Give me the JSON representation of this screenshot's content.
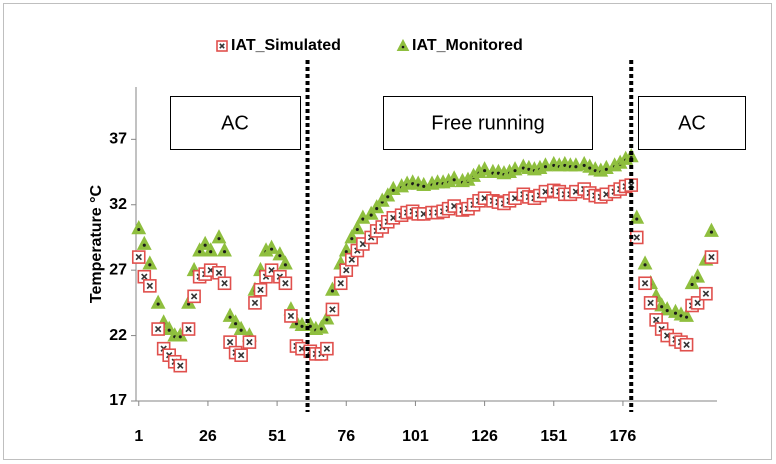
{
  "chart_data": {
    "type": "scatter",
    "y_label": "Temperature °C",
    "xlim": [
      0,
      210
    ],
    "ylim": [
      17,
      41
    ],
    "xticks": [
      1,
      26,
      51,
      76,
      101,
      126,
      151,
      176
    ],
    "yticks": [
      17,
      22,
      27,
      32,
      37
    ],
    "annotations": [
      "AC",
      "Free running",
      "AC"
    ],
    "dividers": [
      62,
      179
    ],
    "x": [
      1,
      3,
      5,
      8,
      10,
      12,
      14,
      16,
      19,
      21,
      23,
      25,
      27,
      30,
      32,
      34,
      36,
      38,
      41,
      43,
      45,
      47,
      49,
      52,
      54,
      56,
      58,
      60,
      63,
      65,
      67,
      69,
      71,
      74,
      76,
      78,
      80,
      82,
      85,
      87,
      89,
      91,
      93,
      96,
      98,
      100,
      102,
      104,
      107,
      109,
      111,
      113,
      115,
      118,
      120,
      122,
      124,
      126,
      129,
      131,
      133,
      135,
      137,
      140,
      142,
      144,
      146,
      148,
      151,
      153,
      155,
      157,
      159,
      162,
      164,
      166,
      168,
      170,
      173,
      175,
      177,
      179,
      181,
      184,
      186,
      188,
      190,
      192,
      195,
      197,
      199,
      201,
      203,
      206,
      208
    ],
    "series": [
      {
        "name": "IAT_Simulated",
        "color": "#e0504d",
        "marker": "square-x",
        "values": [
          28,
          26.5,
          25.8,
          22.5,
          21,
          20.5,
          20,
          19.7,
          22.5,
          25,
          26.5,
          26.7,
          27,
          26.8,
          26,
          21.5,
          20.7,
          20.5,
          21.5,
          24.5,
          25.5,
          26.5,
          27,
          26.5,
          26,
          23.5,
          21.2,
          21,
          20.8,
          20.6,
          20.6,
          21,
          24,
          26,
          27,
          27.8,
          28.5,
          29,
          29.5,
          30,
          30.3,
          30.7,
          31,
          31.2,
          31.4,
          31.5,
          31.3,
          31.3,
          31.4,
          31.4,
          31.5,
          31.7,
          31.9,
          31.6,
          31.7,
          32,
          32.3,
          32.5,
          32.3,
          32.2,
          32.1,
          32.3,
          32.5,
          32.8,
          32.6,
          32.5,
          32.7,
          33,
          33.1,
          33,
          32.8,
          32.8,
          33,
          33.2,
          32.9,
          32.7,
          32.6,
          32.8,
          33,
          33.2,
          33.4,
          33.5,
          29.5,
          26,
          24.5,
          23.2,
          22.5,
          22,
          21.7,
          21.5,
          21.3,
          24.3,
          24.5,
          25.2,
          28
        ]
      },
      {
        "name": "IAT_Monitored",
        "color": "#8fbf3f",
        "marker": "triangle",
        "values": [
          30.2,
          29,
          27.5,
          24.5,
          23,
          22.5,
          22,
          22,
          24.5,
          27,
          28.5,
          29,
          28.5,
          29.5,
          28.5,
          23.5,
          23,
          22.5,
          22,
          25.5,
          27,
          28.5,
          28.7,
          28.2,
          27.5,
          24,
          23,
          22.8,
          22.8,
          22.5,
          22.6,
          23.3,
          25.5,
          27.5,
          28.5,
          29.5,
          30.2,
          31,
          31.3,
          31.8,
          32.3,
          32.7,
          33.2,
          33.4,
          33.6,
          33.7,
          33.6,
          33.5,
          33.6,
          33.7,
          33.7,
          33.8,
          34,
          33.8,
          33.9,
          34.2,
          34.5,
          34.7,
          34.5,
          34.5,
          34.4,
          34.5,
          34.7,
          34.9,
          34.8,
          34.7,
          34.8,
          35,
          35.1,
          35,
          35.1,
          35,
          35,
          35.1,
          34.9,
          34.7,
          34.6,
          34.8,
          35,
          35.2,
          35.5,
          35.7,
          31,
          27.5,
          26,
          25,
          24.3,
          24,
          23.8,
          23.6,
          23.5,
          26,
          26.5,
          27.8,
          30
        ]
      }
    ]
  }
}
